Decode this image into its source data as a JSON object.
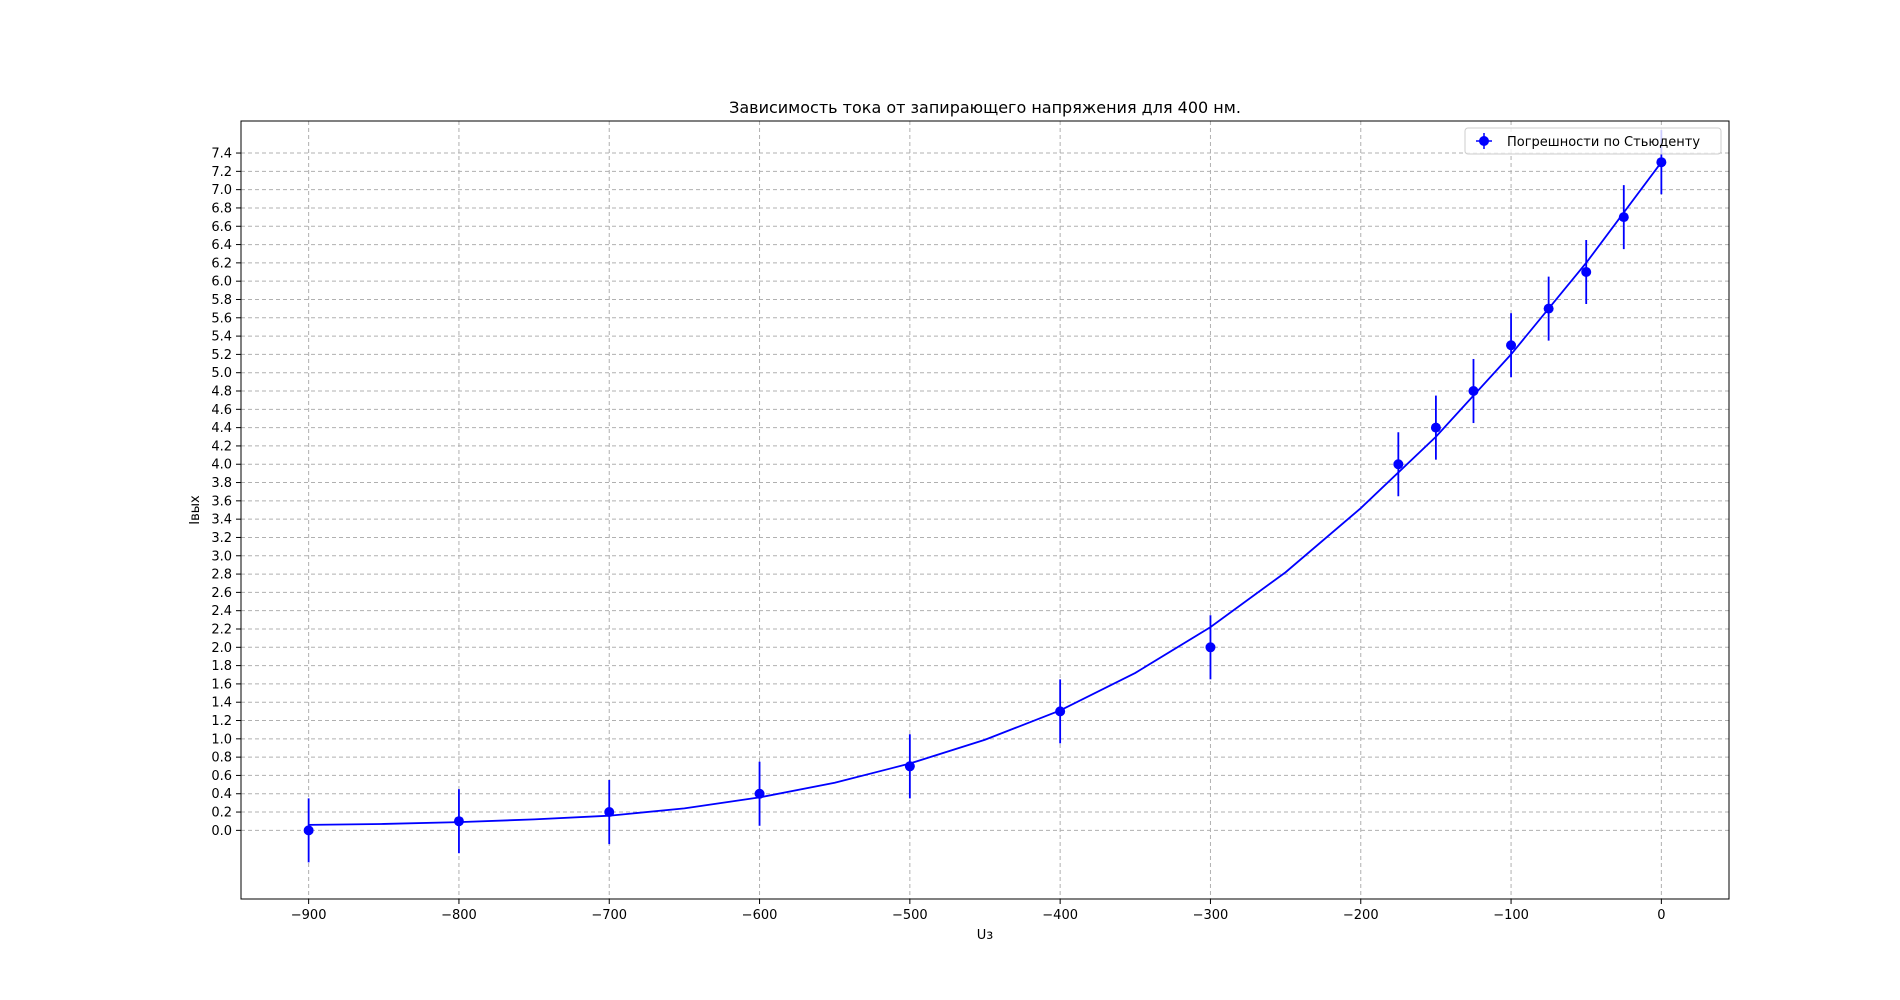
{
  "chart_data": {
    "type": "scatter",
    "title": "Зависимость тока от запирающего напряжения для 400 нм.",
    "xlabel": "Uз",
    "ylabel": "Iвых",
    "xlim": [
      -945,
      45
    ],
    "ylim": [
      -0.75,
      7.75
    ],
    "xticks": [
      -900,
      -800,
      -700,
      -600,
      -500,
      -400,
      -300,
      -200,
      -100,
      0
    ],
    "xtick_labels": [
      "−900",
      "−800",
      "−700",
      "−600",
      "−500",
      "−400",
      "−300",
      "−200",
      "−100",
      "0"
    ],
    "yticks": [
      0.0,
      0.2,
      0.4,
      0.6,
      0.8,
      1.0,
      1.2,
      1.4,
      1.6,
      1.8,
      2.0,
      2.2,
      2.4,
      2.6,
      2.8,
      3.0,
      3.2,
      3.4,
      3.6,
      3.8,
      4.0,
      4.2,
      4.4,
      4.6,
      4.8,
      5.0,
      5.2,
      5.4,
      5.6,
      5.8,
      6.0,
      6.2,
      6.4,
      6.6,
      6.8,
      7.0,
      7.2,
      7.4
    ],
    "ytick_labels": [
      "0.0",
      "0.2",
      "0.4",
      "0.6",
      "0.8",
      "1.0",
      "1.2",
      "1.4",
      "1.6",
      "1.8",
      "2.0",
      "2.2",
      "2.4",
      "2.6",
      "2.8",
      "3.0",
      "3.2",
      "3.4",
      "3.6",
      "3.8",
      "4.0",
      "4.2",
      "4.4",
      "4.6",
      "4.8",
      "5.0",
      "5.2",
      "5.4",
      "5.6",
      "5.8",
      "6.0",
      "6.2",
      "6.4",
      "6.6",
      "6.8",
      "7.0",
      "7.2",
      "7.4"
    ],
    "grid": true,
    "legend_position": "upper right",
    "color": "#0000ff",
    "series": [
      {
        "name": "Погрешности по Стьюденту",
        "x": [
          -900,
          -800,
          -700,
          -600,
          -500,
          -400,
          -300,
          -175,
          -150,
          -125,
          -100,
          -75,
          -50,
          -25,
          0
        ],
        "y": [
          0.0,
          0.1,
          0.2,
          0.4,
          0.7,
          1.3,
          2.0,
          4.0,
          4.4,
          4.8,
          5.3,
          5.7,
          6.1,
          6.7,
          7.3
        ],
        "yerr": 0.35
      }
    ],
    "fit_curve": {
      "x": [
        -900,
        -850,
        -800,
        -750,
        -700,
        -650,
        -600,
        -550,
        -500,
        -450,
        -400,
        -350,
        -300,
        -250,
        -200,
        -150,
        -100,
        -50,
        0
      ],
      "y": [
        0.06,
        0.07,
        0.09,
        0.12,
        0.16,
        0.24,
        0.36,
        0.52,
        0.73,
        0.99,
        1.31,
        1.72,
        2.22,
        2.82,
        3.52,
        4.3,
        5.2,
        6.2,
        7.3
      ]
    }
  }
}
